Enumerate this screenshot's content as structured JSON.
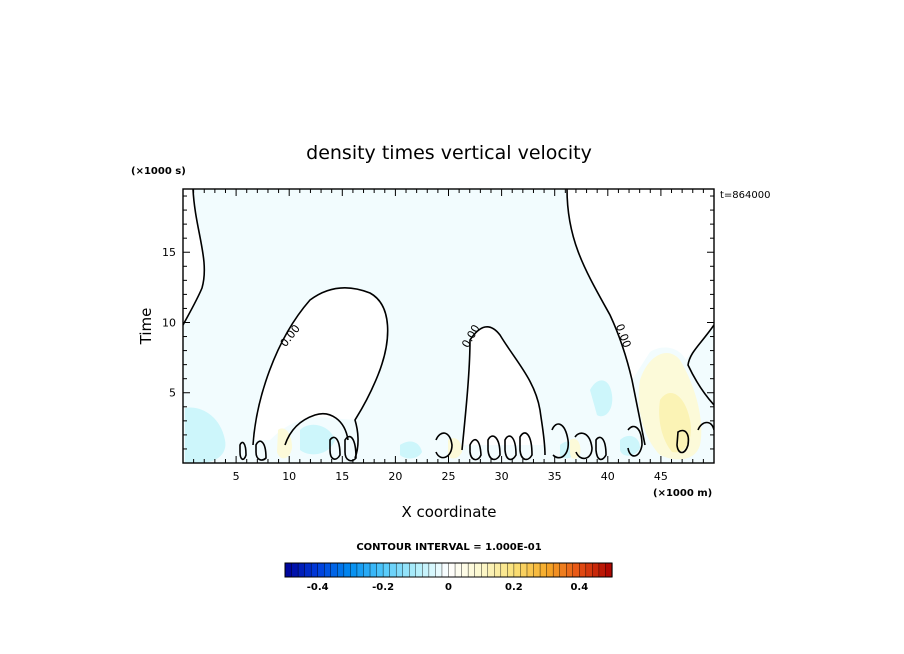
{
  "chart_data": {
    "type": "heatmap",
    "title": "density times vertical velocity",
    "xlabel": "X coordinate",
    "ylabel": "Time",
    "x_unit": "(×1000 m)",
    "y_unit": "(×1000 s)",
    "time_label": "t=864000",
    "xlim": [
      0,
      50
    ],
    "ylim": [
      0,
      19.5
    ],
    "x_ticks": [
      5,
      10,
      15,
      20,
      25,
      30,
      35,
      40,
      45
    ],
    "y_ticks": [
      5,
      10,
      15
    ],
    "contour_labels": [
      "0.00",
      "0.00",
      "0.00"
    ],
    "colorbar": {
      "title": "CONTOUR INTERVAL = 1.000E-01",
      "vmin": -0.5,
      "vmax": 0.5,
      "interval": 0.1,
      "tick_values": [
        -0.4,
        -0.2,
        0,
        0.2,
        0.4
      ],
      "tick_labels": [
        "-0.4",
        "-0.2",
        "0",
        "0.2",
        "0.4"
      ]
    },
    "colors": {
      "background_field": "#f2fcfe",
      "weak_negative": "#cdf6fb",
      "weak_positive": "#fcfad9",
      "positive": "#fbf3b5"
    }
  }
}
